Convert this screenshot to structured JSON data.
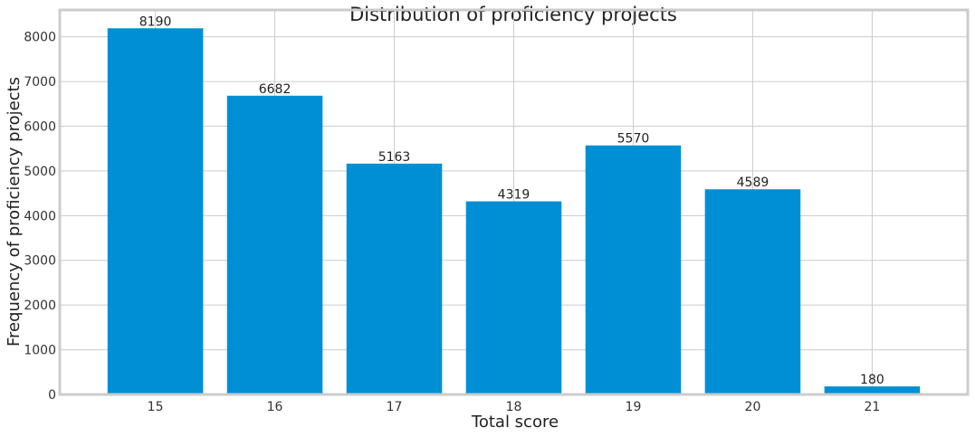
{
  "chart_data": {
    "type": "bar",
    "title": "Distribution of proficiency projects",
    "xlabel": "Total score",
    "ylabel": "Frequency of proficiency projects",
    "categories": [
      "15",
      "16",
      "17",
      "18",
      "19",
      "20",
      "21"
    ],
    "values": [
      8190,
      6682,
      5163,
      4319,
      5570,
      4589,
      180
    ],
    "ylim": [
      0,
      8600
    ],
    "yticks": [
      0,
      1000,
      2000,
      3000,
      4000,
      5000,
      6000,
      7000,
      8000
    ],
    "grid": true,
    "bar_color": "#008fd5",
    "grid_color": "#cccccc",
    "background": "#ffffff"
  }
}
